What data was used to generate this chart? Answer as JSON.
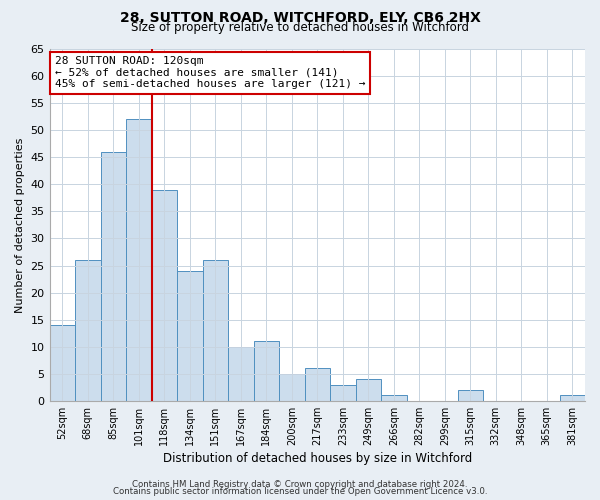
{
  "title": "28, SUTTON ROAD, WITCHFORD, ELY, CB6 2HX",
  "subtitle": "Size of property relative to detached houses in Witchford",
  "xlabel": "Distribution of detached houses by size in Witchford",
  "ylabel": "Number of detached properties",
  "bar_color": "#ccdded",
  "bar_edge_color": "#5090c0",
  "categories": [
    "52sqm",
    "68sqm",
    "85sqm",
    "101sqm",
    "118sqm",
    "134sqm",
    "151sqm",
    "167sqm",
    "184sqm",
    "200sqm",
    "217sqm",
    "233sqm",
    "249sqm",
    "266sqm",
    "282sqm",
    "299sqm",
    "315sqm",
    "332sqm",
    "348sqm",
    "365sqm",
    "381sqm"
  ],
  "values": [
    14,
    26,
    46,
    52,
    39,
    24,
    26,
    10,
    11,
    5,
    6,
    3,
    4,
    1,
    0,
    0,
    2,
    0,
    0,
    0,
    1
  ],
  "vline_x_index": 4,
  "vline_color": "#cc0000",
  "annotation_title": "28 SUTTON ROAD: 120sqm",
  "annotation_line1": "← 52% of detached houses are smaller (141)",
  "annotation_line2": "45% of semi-detached houses are larger (121) →",
  "annotation_box_color": "#ffffff",
  "annotation_box_edge": "#cc0000",
  "ylim": [
    0,
    65
  ],
  "yticks": [
    0,
    5,
    10,
    15,
    20,
    25,
    30,
    35,
    40,
    45,
    50,
    55,
    60,
    65
  ],
  "footer1": "Contains HM Land Registry data © Crown copyright and database right 2024.",
  "footer2": "Contains public sector information licensed under the Open Government Licence v3.0.",
  "bg_color": "#e8eef4",
  "plot_bg_color": "#ffffff",
  "grid_color": "#c8d4e0"
}
